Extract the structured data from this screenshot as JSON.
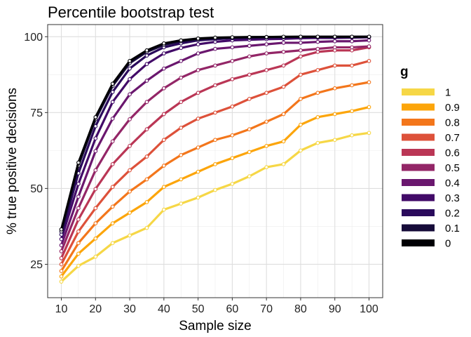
{
  "chart_data": {
    "type": "line",
    "title": "Percentile bootstrap test",
    "xlabel": "Sample size",
    "ylabel": "% true positive decisions",
    "xlim": [
      6,
      104
    ],
    "ylim": [
      14,
      104
    ],
    "xticks": [
      10,
      20,
      30,
      40,
      50,
      60,
      70,
      80,
      90,
      100
    ],
    "xtick_labels": [
      "10",
      "20",
      "30",
      "40",
      "50",
      "60",
      "70",
      "80",
      "90",
      "100"
    ],
    "yticks": [
      25,
      50,
      75,
      100
    ],
    "ytick_labels": [
      "25",
      "50",
      "75",
      "100"
    ],
    "grid": true,
    "legend_title": "g",
    "legend_position": "right",
    "x": [
      10,
      15,
      20,
      25,
      30,
      35,
      40,
      45,
      50,
      55,
      60,
      65,
      70,
      75,
      80,
      85,
      90,
      95,
      100
    ],
    "series": [
      {
        "name": "0",
        "color": "#000004",
        "values": [
          36.5,
          58.5,
          73.5,
          84.5,
          92.0,
          95.5,
          97.8,
          98.8,
          99.4,
          99.7,
          99.8,
          99.9,
          99.9,
          100,
          100,
          100,
          100,
          100,
          100
        ]
      },
      {
        "name": "0.1",
        "color": "#160B39",
        "values": [
          35.8,
          57.5,
          72.8,
          83.8,
          91.3,
          95.0,
          97.3,
          98.5,
          99.2,
          99.5,
          99.7,
          99.8,
          99.9,
          99.9,
          100,
          100,
          100,
          100,
          100
        ]
      },
      {
        "name": "0.2",
        "color": "#2A0A5C",
        "values": [
          34.8,
          55.0,
          70.5,
          81.8,
          89.5,
          93.8,
          96.5,
          97.8,
          98.8,
          99.2,
          99.5,
          99.6,
          99.7,
          99.8,
          99.9,
          99.9,
          99.9,
          99.9,
          100
        ]
      },
      {
        "name": "0.3",
        "color": "#420A68",
        "values": [
          33.3,
          51.5,
          66.5,
          78.5,
          86.0,
          91.0,
          94.5,
          96.3,
          97.5,
          98.3,
          98.8,
          99.0,
          99.2,
          99.3,
          99.5,
          99.6,
          99.6,
          99.7,
          99.8
        ]
      },
      {
        "name": "0.4",
        "color": "#6A176E",
        "values": [
          31.3,
          47.3,
          62.3,
          73.0,
          81.0,
          85.5,
          89.5,
          92.0,
          94.5,
          96.0,
          96.5,
          97.0,
          97.5,
          98.0,
          98.0,
          98.3,
          98.5,
          98.5,
          98.8
        ]
      },
      {
        "name": "0.5",
        "color": "#932667",
        "values": [
          29.3,
          43.5,
          56.0,
          65.5,
          72.8,
          78.5,
          83.0,
          86.5,
          89.0,
          90.5,
          92.0,
          93.5,
          94.5,
          95.0,
          95.5,
          96.0,
          96.5,
          96.5,
          96.8
        ]
      },
      {
        "name": "0.6",
        "color": "#BA3655",
        "values": [
          27.0,
          39.8,
          49.8,
          58.0,
          64.0,
          69.5,
          74.5,
          78.5,
          81.5,
          84.0,
          86.0,
          87.5,
          89.0,
          90.5,
          93.5,
          95.0,
          95.5,
          95.5,
          96.5
        ]
      },
      {
        "name": "0.7",
        "color": "#DD513A",
        "values": [
          25.0,
          35.8,
          43.5,
          50.5,
          56.0,
          60.5,
          66.0,
          70.0,
          73.0,
          75.0,
          77.0,
          79.5,
          81.5,
          83.5,
          87.5,
          89.0,
          90.5,
          90.5,
          92.0
        ]
      },
      {
        "name": "0.8",
        "color": "#F3761B",
        "values": [
          22.8,
          32.0,
          38.5,
          44.0,
          49.0,
          53.0,
          57.5,
          61.0,
          63.5,
          66.0,
          67.5,
          69.5,
          72.0,
          74.5,
          79.5,
          81.5,
          83.0,
          84.0,
          85.0
        ]
      },
      {
        "name": "0.9",
        "color": "#FCA50A",
        "values": [
          21.0,
          28.5,
          33.5,
          38.5,
          42.0,
          45.5,
          50.5,
          53.0,
          55.5,
          58.0,
          60.0,
          62.0,
          64.0,
          65.5,
          71.0,
          73.5,
          74.5,
          75.5,
          76.8
        ]
      },
      {
        "name": "1",
        "color": "#F6D746",
        "values": [
          19.3,
          24.5,
          27.5,
          32.0,
          34.5,
          37.0,
          43.0,
          45.0,
          47.0,
          49.5,
          51.5,
          54.0,
          57.0,
          58.0,
          62.5,
          65.0,
          66.0,
          67.5,
          68.3
        ]
      }
    ]
  }
}
